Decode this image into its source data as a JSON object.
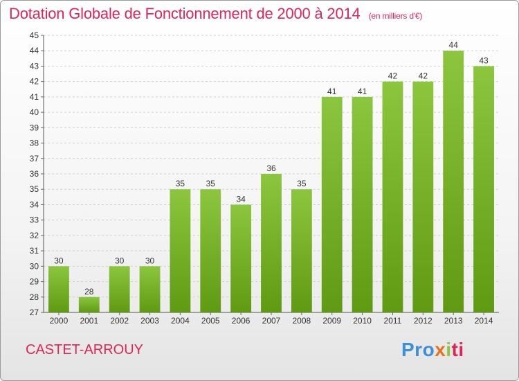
{
  "header": {
    "title": "Dotation Globale de Fonctionnement de 2000 à 2014",
    "subtitle": "(en milliers d'€)"
  },
  "footer": {
    "commune": "CASTET-ARROUY",
    "logo": {
      "p1": "Pro",
      "p2": "x",
      "p3": "i",
      "p4": "ti"
    }
  },
  "colors": {
    "bar_top": "#8cc63f",
    "bar_bottom": "#5f9a12",
    "accent": "#e0245a"
  },
  "chart_data": {
    "type": "bar",
    "title": "Dotation Globale de Fonctionnement de 2000 à 2014",
    "subtitle": "(en milliers d'€)",
    "xlabel": "",
    "ylabel": "",
    "categories": [
      "2000",
      "2001",
      "2002",
      "2003",
      "2004",
      "2005",
      "2006",
      "2007",
      "2008",
      "2009",
      "2010",
      "2011",
      "2012",
      "2013",
      "2014"
    ],
    "values": [
      30,
      28,
      30,
      30,
      35,
      35,
      34,
      36,
      35,
      41,
      41,
      42,
      42,
      44,
      43
    ],
    "ylim": [
      27,
      45
    ],
    "yticks": [
      27,
      28,
      29,
      30,
      31,
      32,
      33,
      34,
      35,
      36,
      37,
      38,
      39,
      40,
      41,
      42,
      43,
      44,
      45
    ],
    "grid": true,
    "legend": "none"
  }
}
